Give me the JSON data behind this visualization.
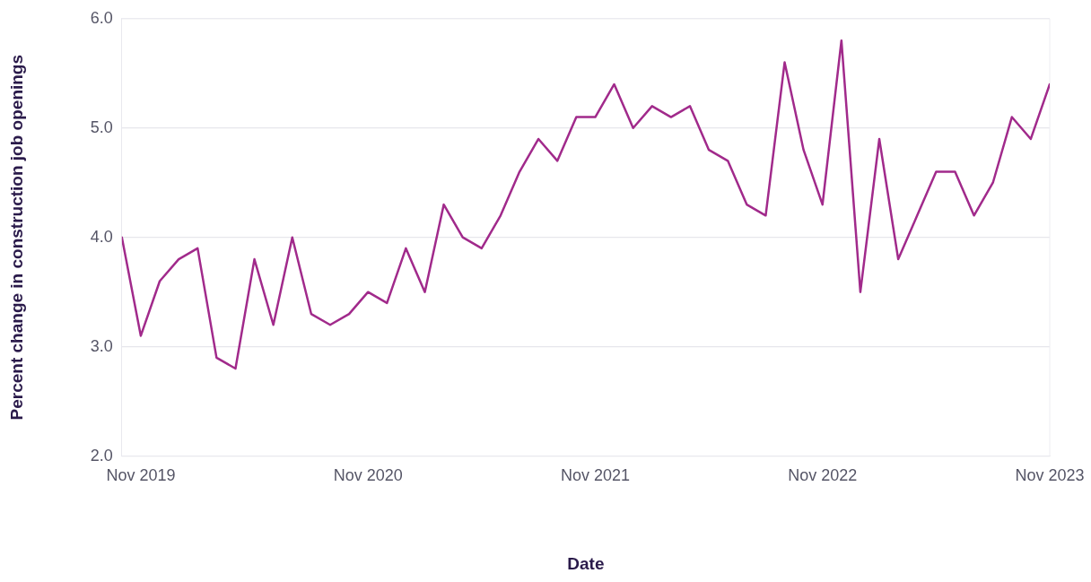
{
  "chart_data": {
    "type": "line",
    "xlabel": "Date",
    "ylabel": "Percent change in construction job openings",
    "x": [
      "2019-10",
      "2019-11",
      "2019-12",
      "2020-01",
      "2020-02",
      "2020-03",
      "2020-04",
      "2020-05",
      "2020-06",
      "2020-07",
      "2020-08",
      "2020-09",
      "2020-10",
      "2020-11",
      "2020-12",
      "2021-01",
      "2021-02",
      "2021-03",
      "2021-04",
      "2021-05",
      "2021-06",
      "2021-07",
      "2021-08",
      "2021-09",
      "2021-10",
      "2021-11",
      "2021-12",
      "2022-01",
      "2022-02",
      "2022-03",
      "2022-04",
      "2022-05",
      "2022-06",
      "2022-07",
      "2022-08",
      "2022-09",
      "2022-10",
      "2022-11",
      "2022-12",
      "2023-01",
      "2023-02",
      "2023-03",
      "2023-04",
      "2023-05",
      "2023-06",
      "2023-07",
      "2023-08",
      "2023-09",
      "2023-10",
      "2023-11"
    ],
    "series": [
      {
        "color": "#a12a8b",
        "values": [
          4.0,
          3.1,
          3.6,
          3.8,
          3.9,
          2.9,
          2.8,
          3.8,
          3.2,
          4.0,
          3.3,
          3.2,
          3.3,
          3.5,
          3.4,
          3.9,
          3.5,
          4.3,
          4.0,
          3.9,
          4.2,
          4.6,
          4.9,
          4.7,
          5.1,
          5.1,
          5.4,
          5.0,
          5.2,
          5.1,
          5.2,
          4.8,
          4.7,
          4.3,
          4.2,
          5.6,
          4.8,
          4.3,
          5.8,
          3.5,
          4.9,
          3.8,
          4.2,
          4.6,
          4.6,
          4.2,
          4.5,
          5.1,
          4.9,
          5.4
        ]
      }
    ],
    "xlim": [
      "2019-10",
      "2023-11"
    ],
    "xticks": [
      {
        "value": "2019-11",
        "label": "Nov 2019"
      },
      {
        "value": "2020-11",
        "label": "Nov 2020"
      },
      {
        "value": "2021-11",
        "label": "Nov 2021"
      },
      {
        "value": "2022-11",
        "label": "Nov 2022"
      },
      {
        "value": "2023-11",
        "label": "Nov 2023"
      }
    ],
    "ylim": [
      2,
      6
    ],
    "yticks": [
      {
        "value": 2,
        "label": "2.0"
      },
      {
        "value": 3,
        "label": "3.0"
      },
      {
        "value": 4,
        "label": "4.0"
      },
      {
        "value": 5,
        "label": "5.0"
      },
      {
        "value": 6,
        "label": "6.0"
      }
    ],
    "grid": "y",
    "marker": "none",
    "line_style": "solid"
  }
}
